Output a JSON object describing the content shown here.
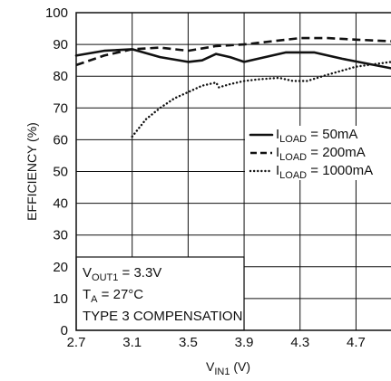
{
  "chart_data": {
    "type": "line",
    "xlabel": {
      "main": "V",
      "sub": "IN1",
      "tail": " (V)"
    },
    "ylabel": "EFFICIENCY (%)",
    "xlim": [
      2.7,
      4.95
    ],
    "ylim": [
      0,
      100
    ],
    "x_ticks": [
      "2.7",
      "3.1",
      "3.5",
      "3.9",
      "4.3",
      "4.7"
    ],
    "y_ticks": [
      "0",
      "10",
      "20",
      "30",
      "40",
      "50",
      "60",
      "70",
      "80",
      "90",
      "100"
    ],
    "grid": true,
    "series": [
      {
        "name": "ILOAD = 50mA",
        "legend": {
          "main": "I",
          "sub": "LOAD",
          "tail": " = 50mA"
        },
        "style": "solid",
        "points": [
          [
            2.7,
            86.5
          ],
          [
            2.9,
            88
          ],
          [
            3.1,
            88.5
          ],
          [
            3.3,
            86
          ],
          [
            3.5,
            84.5
          ],
          [
            3.6,
            85
          ],
          [
            3.7,
            87
          ],
          [
            3.8,
            86
          ],
          [
            3.9,
            84.5
          ],
          [
            4.0,
            85.5
          ],
          [
            4.2,
            87.5
          ],
          [
            4.4,
            87.5
          ],
          [
            4.6,
            85.5
          ],
          [
            4.95,
            82.5
          ]
        ]
      },
      {
        "name": "ILOAD = 200mA",
        "legend": {
          "main": "I",
          "sub": "LOAD",
          "tail": " = 200mA"
        },
        "style": "dashed",
        "points": [
          [
            2.7,
            83.5
          ],
          [
            2.9,
            86.5
          ],
          [
            3.1,
            88.5
          ],
          [
            3.3,
            89
          ],
          [
            3.5,
            88
          ],
          [
            3.7,
            89.5
          ],
          [
            3.9,
            90
          ],
          [
            4.1,
            91
          ],
          [
            4.3,
            92
          ],
          [
            4.5,
            92
          ],
          [
            4.7,
            91.5
          ],
          [
            4.95,
            91
          ]
        ]
      },
      {
        "name": "ILOAD = 1000mA",
        "legend": {
          "main": "I",
          "sub": "LOAD",
          "tail": " = 1000mA"
        },
        "style": "dotted",
        "points": [
          [
            3.1,
            61
          ],
          [
            3.2,
            66.5
          ],
          [
            3.3,
            70
          ],
          [
            3.4,
            73
          ],
          [
            3.5,
            75
          ],
          [
            3.6,
            77
          ],
          [
            3.7,
            78
          ],
          [
            3.72,
            76.5
          ],
          [
            3.8,
            77.5
          ],
          [
            3.9,
            78.5
          ],
          [
            4.0,
            79
          ],
          [
            4.15,
            79.5
          ],
          [
            4.25,
            78.5
          ],
          [
            4.35,
            78.5
          ],
          [
            4.5,
            80.5
          ],
          [
            4.7,
            83
          ],
          [
            4.95,
            84.5
          ]
        ]
      }
    ],
    "annotations": [
      {
        "main": "V",
        "sub": "OUT1",
        "tail": " = 3.3V"
      },
      {
        "main": "T",
        "sub": "A",
        "tail": " = 27°C"
      },
      {
        "main": "TYPE 3 COMPENSATION",
        "sub": "",
        "tail": ""
      }
    ]
  }
}
